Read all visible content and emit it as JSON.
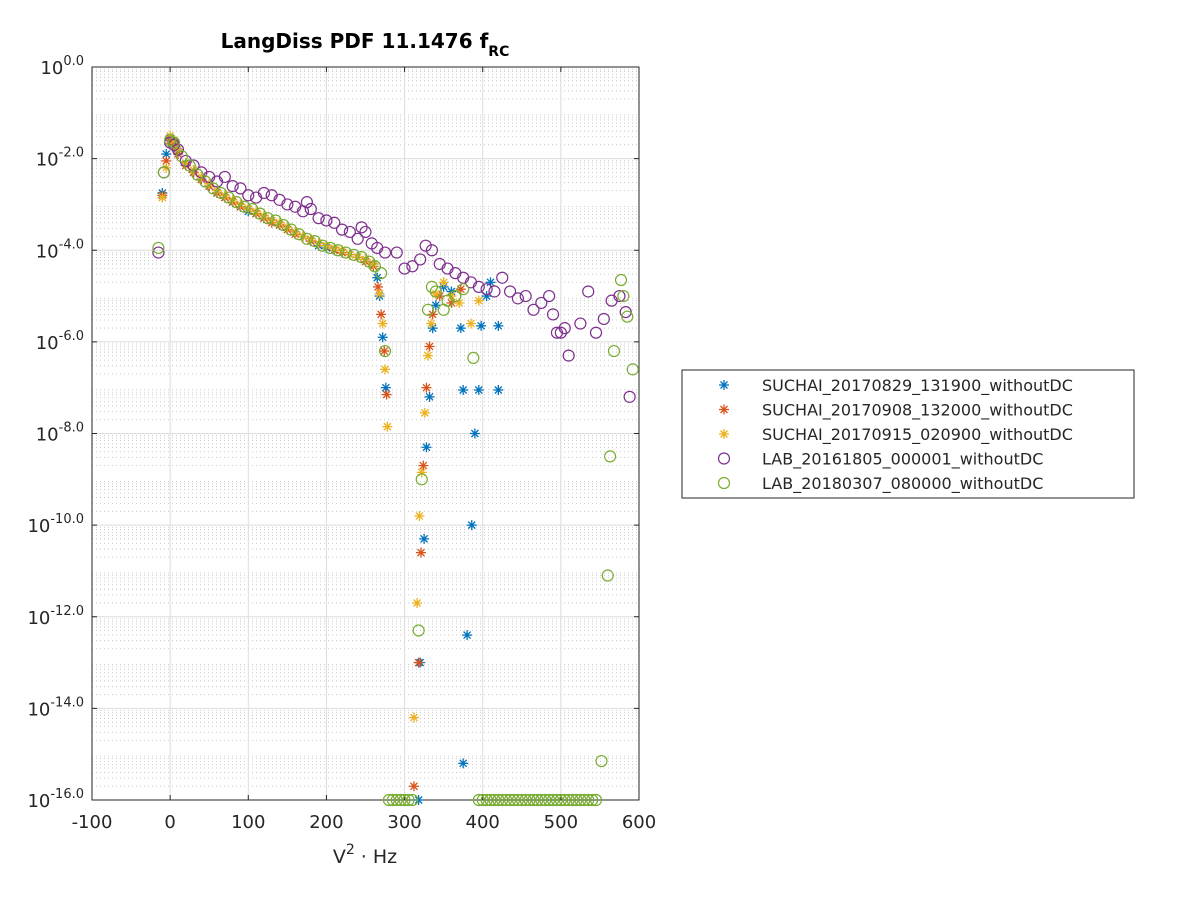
{
  "chart_data": {
    "type": "scatter",
    "title": "LangDiss PDF 11.1476 f",
    "title_subscript": "RC",
    "xlabel": "V",
    "xlabel_superscript": "2",
    "xlabel_suffix": " · Hz",
    "ylabel": "",
    "xlim": [
      -100,
      600
    ],
    "ylim_log10": [
      -16,
      0
    ],
    "yscale": "log",
    "x_ticks": [
      -100,
      0,
      100,
      200,
      300,
      400,
      500,
      600
    ],
    "x_tick_labels": [
      "-100",
      "0",
      "100",
      "200",
      "300",
      "400",
      "500",
      "600"
    ],
    "y_ticks_log10": [
      -16,
      -14,
      -12,
      -10,
      -8,
      -6,
      -4,
      -2,
      0
    ],
    "y_tick_base": "10",
    "y_tick_exponents": [
      "-16.0",
      "-14.0",
      "-12.0",
      "-10.0",
      "-8.0",
      "-6.0",
      "-4.0",
      "-2.0",
      "0.0"
    ],
    "grid": true,
    "minor_grid": true,
    "legend_position": "outside-right",
    "series": [
      {
        "name": "SUCHAI_20170829_131900_withoutDC",
        "marker": "asterisk",
        "color": "#0072BD",
        "points": [
          [
            -10,
            -2.75
          ],
          [
            -5,
            -1.9
          ],
          [
            0,
            -1.55
          ],
          [
            5,
            -1.65
          ],
          [
            10,
            -1.85
          ],
          [
            20,
            -2.1
          ],
          [
            30,
            -2.3
          ],
          [
            40,
            -2.45
          ],
          [
            50,
            -2.6
          ],
          [
            60,
            -2.75
          ],
          [
            70,
            -2.85
          ],
          [
            80,
            -2.95
          ],
          [
            90,
            -3.05
          ],
          [
            100,
            -3.15
          ],
          [
            110,
            -3.2
          ],
          [
            120,
            -3.3
          ],
          [
            130,
            -3.35
          ],
          [
            140,
            -3.45
          ],
          [
            150,
            -3.5
          ],
          [
            160,
            -3.6
          ],
          [
            170,
            -3.7
          ],
          [
            180,
            -3.8
          ],
          [
            190,
            -3.9
          ],
          [
            200,
            -3.95
          ],
          [
            210,
            -4.0
          ],
          [
            220,
            -4.05
          ],
          [
            230,
            -4.1
          ],
          [
            240,
            -4.15
          ],
          [
            250,
            -4.2
          ],
          [
            260,
            -4.3
          ],
          [
            265,
            -4.6
          ],
          [
            268,
            -5.0
          ],
          [
            272,
            -5.9
          ],
          [
            276,
            -7.0
          ],
          [
            318,
            -16.0
          ],
          [
            320,
            -13.0
          ],
          [
            325,
            -10.3
          ],
          [
            328,
            -8.3
          ],
          [
            332,
            -7.2
          ],
          [
            336,
            -5.7
          ],
          [
            340,
            -5.2
          ],
          [
            350,
            -4.8
          ],
          [
            360,
            -4.9
          ],
          [
            372,
            -5.7
          ],
          [
            375,
            -7.05
          ],
          [
            380,
            -12.4
          ],
          [
            386,
            -10.0
          ],
          [
            390,
            -8.0
          ],
          [
            395,
            -7.05
          ],
          [
            398,
            -5.65
          ],
          [
            405,
            -5.0
          ],
          [
            410,
            -4.7
          ],
          [
            420,
            -5.65
          ],
          [
            420,
            -7.05
          ],
          [
            375,
            -15.2
          ]
        ]
      },
      {
        "name": "SUCHAI_20170908_132000_withoutDC",
        "marker": "asterisk",
        "color": "#D95319",
        "points": [
          [
            -10,
            -2.8
          ],
          [
            -5,
            -2.05
          ],
          [
            0,
            -1.6
          ],
          [
            5,
            -1.7
          ],
          [
            10,
            -1.9
          ],
          [
            20,
            -2.15
          ],
          [
            30,
            -2.3
          ],
          [
            40,
            -2.45
          ],
          [
            50,
            -2.6
          ],
          [
            60,
            -2.75
          ],
          [
            70,
            -2.85
          ],
          [
            80,
            -2.95
          ],
          [
            90,
            -3.05
          ],
          [
            100,
            -3.1
          ],
          [
            110,
            -3.2
          ],
          [
            120,
            -3.3
          ],
          [
            130,
            -3.4
          ],
          [
            140,
            -3.45
          ],
          [
            150,
            -3.55
          ],
          [
            160,
            -3.65
          ],
          [
            170,
            -3.7
          ],
          [
            180,
            -3.8
          ],
          [
            190,
            -3.85
          ],
          [
            200,
            -3.9
          ],
          [
            210,
            -4.0
          ],
          [
            220,
            -4.05
          ],
          [
            230,
            -4.1
          ],
          [
            240,
            -4.15
          ],
          [
            250,
            -4.25
          ],
          [
            260,
            -4.35
          ],
          [
            266,
            -4.8
          ],
          [
            270,
            -5.4
          ],
          [
            274,
            -6.2
          ],
          [
            277,
            -7.15
          ],
          [
            312,
            -15.7
          ],
          [
            318,
            -13.0
          ],
          [
            321,
            -10.6
          ],
          [
            324,
            -8.7
          ],
          [
            328,
            -7.0
          ],
          [
            332,
            -6.1
          ],
          [
            336,
            -5.4
          ],
          [
            345,
            -5.0
          ],
          [
            360,
            -5.15
          ],
          [
            372,
            -4.85
          ]
        ]
      },
      {
        "name": "SUCHAI_20170915_020900_withoutDC",
        "marker": "asterisk",
        "color": "#EDB120",
        "points": [
          [
            -10,
            -2.85
          ],
          [
            -5,
            -2.2
          ],
          [
            0,
            -1.5
          ],
          [
            5,
            -1.6
          ],
          [
            10,
            -1.8
          ],
          [
            20,
            -2.1
          ],
          [
            30,
            -2.25
          ],
          [
            40,
            -2.4
          ],
          [
            50,
            -2.55
          ],
          [
            60,
            -2.7
          ],
          [
            70,
            -2.8
          ],
          [
            80,
            -2.9
          ],
          [
            90,
            -3.0
          ],
          [
            100,
            -3.1
          ],
          [
            110,
            -3.15
          ],
          [
            120,
            -3.25
          ],
          [
            130,
            -3.35
          ],
          [
            140,
            -3.4
          ],
          [
            150,
            -3.5
          ],
          [
            160,
            -3.6
          ],
          [
            170,
            -3.7
          ],
          [
            180,
            -3.75
          ],
          [
            190,
            -3.85
          ],
          [
            200,
            -3.9
          ],
          [
            210,
            -3.95
          ],
          [
            220,
            -4.0
          ],
          [
            230,
            -4.1
          ],
          [
            240,
            -4.15
          ],
          [
            250,
            -4.2
          ],
          [
            260,
            -4.3
          ],
          [
            268,
            -4.95
          ],
          [
            272,
            -5.6
          ],
          [
            275,
            -6.6
          ],
          [
            278,
            -7.85
          ],
          [
            312,
            -14.2
          ],
          [
            316,
            -11.7
          ],
          [
            319,
            -9.8
          ],
          [
            322,
            -8.85
          ],
          [
            326,
            -7.55
          ],
          [
            330,
            -6.3
          ],
          [
            334,
            -5.6
          ],
          [
            340,
            -4.95
          ],
          [
            350,
            -4.7
          ],
          [
            360,
            -5.0
          ],
          [
            370,
            -5.15
          ],
          [
            385,
            -5.6
          ],
          [
            395,
            -5.1
          ]
        ]
      },
      {
        "name": "LAB_20161805_000001_withoutDC",
        "marker": "circle",
        "color": "#7E2F8E",
        "points": [
          [
            -15,
            -4.05
          ],
          [
            -8,
            -2.3
          ],
          [
            0,
            -1.65
          ],
          [
            5,
            -1.7
          ],
          [
            10,
            -1.8
          ],
          [
            20,
            -2.05
          ],
          [
            30,
            -2.15
          ],
          [
            40,
            -2.3
          ],
          [
            50,
            -2.4
          ],
          [
            60,
            -2.5
          ],
          [
            70,
            -2.4
          ],
          [
            80,
            -2.6
          ],
          [
            90,
            -2.65
          ],
          [
            100,
            -2.8
          ],
          [
            110,
            -2.85
          ],
          [
            120,
            -2.75
          ],
          [
            130,
            -2.8
          ],
          [
            140,
            -2.9
          ],
          [
            150,
            -3.0
          ],
          [
            160,
            -3.05
          ],
          [
            170,
            -3.15
          ],
          [
            175,
            -2.95
          ],
          [
            180,
            -3.1
          ],
          [
            190,
            -3.3
          ],
          [
            200,
            -3.35
          ],
          [
            210,
            -3.4
          ],
          [
            220,
            -3.55
          ],
          [
            230,
            -3.6
          ],
          [
            240,
            -3.75
          ],
          [
            245,
            -3.5
          ],
          [
            250,
            -3.6
          ],
          [
            258,
            -3.85
          ],
          [
            265,
            -3.95
          ],
          [
            275,
            -4.05
          ],
          [
            290,
            -4.05
          ],
          [
            300,
            -4.4
          ],
          [
            310,
            -4.35
          ],
          [
            320,
            -4.2
          ],
          [
            327,
            -3.9
          ],
          [
            335,
            -4.0
          ],
          [
            345,
            -4.3
          ],
          [
            355,
            -4.4
          ],
          [
            365,
            -4.5
          ],
          [
            375,
            -4.6
          ],
          [
            385,
            -4.7
          ],
          [
            395,
            -4.8
          ],
          [
            405,
            -4.85
          ],
          [
            415,
            -4.9
          ],
          [
            425,
            -4.6
          ],
          [
            435,
            -4.9
          ],
          [
            445,
            -5.05
          ],
          [
            455,
            -5.0
          ],
          [
            465,
            -5.3
          ],
          [
            475,
            -5.15
          ],
          [
            485,
            -5.0
          ],
          [
            490,
            -5.4
          ],
          [
            495,
            -5.8
          ],
          [
            500,
            -5.8
          ],
          [
            505,
            -5.7
          ],
          [
            510,
            -6.3
          ],
          [
            525,
            -5.6
          ],
          [
            535,
            -4.9
          ],
          [
            545,
            -5.8
          ],
          [
            555,
            -5.5
          ],
          [
            565,
            -5.1
          ],
          [
            575,
            -5.0
          ],
          [
            583,
            -5.35
          ],
          [
            588,
            -7.2
          ]
        ]
      },
      {
        "name": "LAB_20180307_080000_withoutDC",
        "marker": "circle",
        "color": "#77AC30",
        "points": [
          [
            -15,
            -3.95
          ],
          [
            -8,
            -2.3
          ],
          [
            0,
            -1.6
          ],
          [
            5,
            -1.65
          ],
          [
            15,
            -1.95
          ],
          [
            25,
            -2.15
          ],
          [
            35,
            -2.35
          ],
          [
            45,
            -2.5
          ],
          [
            55,
            -2.65
          ],
          [
            65,
            -2.75
          ],
          [
            75,
            -2.85
          ],
          [
            85,
            -2.95
          ],
          [
            95,
            -3.05
          ],
          [
            105,
            -3.1
          ],
          [
            115,
            -3.2
          ],
          [
            125,
            -3.3
          ],
          [
            135,
            -3.35
          ],
          [
            145,
            -3.45
          ],
          [
            155,
            -3.55
          ],
          [
            165,
            -3.65
          ],
          [
            175,
            -3.75
          ],
          [
            185,
            -3.8
          ],
          [
            195,
            -3.9
          ],
          [
            205,
            -3.95
          ],
          [
            215,
            -4.0
          ],
          [
            225,
            -4.05
          ],
          [
            235,
            -4.1
          ],
          [
            245,
            -4.15
          ],
          [
            255,
            -4.25
          ],
          [
            262,
            -4.35
          ],
          [
            270,
            -4.5
          ],
          [
            275,
            -6.2
          ],
          [
            280,
            -16.0
          ],
          [
            285,
            -16.0
          ],
          [
            290,
            -16.0
          ],
          [
            295,
            -16.0
          ],
          [
            300,
            -16.0
          ],
          [
            305,
            -16.0
          ],
          [
            310,
            -16.0
          ],
          [
            318,
            -12.3
          ],
          [
            322,
            -9.0
          ],
          [
            330,
            -5.3
          ],
          [
            335,
            -4.8
          ],
          [
            340,
            -4.9
          ],
          [
            350,
            -5.3
          ],
          [
            355,
            -5.1
          ],
          [
            365,
            -5.0
          ],
          [
            375,
            -4.85
          ],
          [
            388,
            -6.35
          ],
          [
            395,
            -16.0
          ],
          [
            400,
            -16.0
          ],
          [
            405,
            -16.0
          ],
          [
            410,
            -16.0
          ],
          [
            415,
            -16.0
          ],
          [
            420,
            -16.0
          ],
          [
            425,
            -16.0
          ],
          [
            430,
            -16.0
          ],
          [
            435,
            -16.0
          ],
          [
            440,
            -16.0
          ],
          [
            445,
            -16.0
          ],
          [
            450,
            -16.0
          ],
          [
            455,
            -16.0
          ],
          [
            460,
            -16.0
          ],
          [
            465,
            -16.0
          ],
          [
            470,
            -16.0
          ],
          [
            475,
            -16.0
          ],
          [
            480,
            -16.0
          ],
          [
            485,
            -16.0
          ],
          [
            490,
            -16.0
          ],
          [
            495,
            -16.0
          ],
          [
            500,
            -16.0
          ],
          [
            505,
            -16.0
          ],
          [
            510,
            -16.0
          ],
          [
            515,
            -16.0
          ],
          [
            520,
            -16.0
          ],
          [
            525,
            -16.0
          ],
          [
            530,
            -16.0
          ],
          [
            535,
            -16.0
          ],
          [
            540,
            -16.0
          ],
          [
            545,
            -16.0
          ],
          [
            552,
            -15.15
          ],
          [
            560,
            -11.1
          ],
          [
            563,
            -8.5
          ],
          [
            568,
            -6.2
          ],
          [
            577,
            -4.65
          ],
          [
            580,
            -5.0
          ],
          [
            585,
            -5.45
          ],
          [
            592,
            -6.6
          ]
        ]
      }
    ]
  }
}
